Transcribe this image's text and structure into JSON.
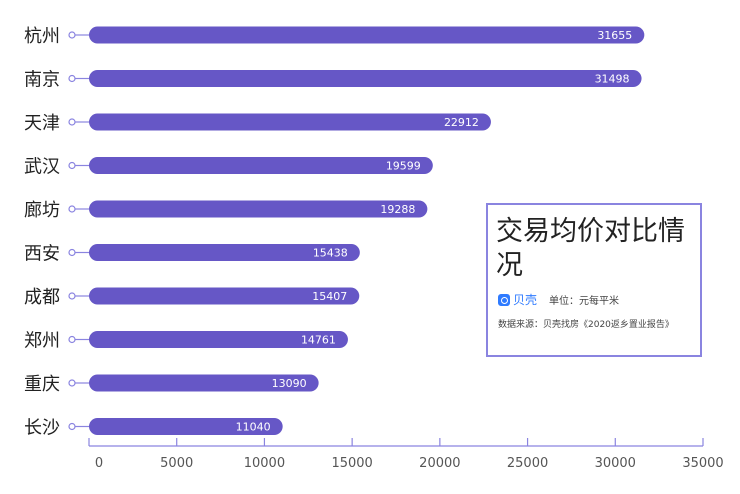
{
  "chart_data": {
    "type": "bar",
    "orientation": "horizontal",
    "categories": [
      "杭州",
      "南京",
      "天津",
      "武汉",
      "廊坊",
      "西安",
      "成都",
      "郑州",
      "重庆",
      "长沙"
    ],
    "values": [
      31655,
      31498,
      22912,
      19599,
      19288,
      15438,
      15407,
      14761,
      13090,
      11040
    ],
    "xlim": [
      0,
      35000
    ],
    "x_ticks": [
      "0",
      "5000",
      "10000",
      "15000",
      "20000",
      "25000",
      "30000",
      "35000"
    ],
    "grid": false,
    "bar_color": "#6657c6"
  },
  "legend": {
    "title": "交易均价对比情况",
    "brand": "贝壳",
    "unit": "单位：元每平米",
    "source": "数据来源：贝壳找房《2020返乡置业报告》"
  },
  "colors": {
    "bar": "#6657c6",
    "axis": "#8a84e0",
    "text": "#222222",
    "tick": "#555555"
  }
}
